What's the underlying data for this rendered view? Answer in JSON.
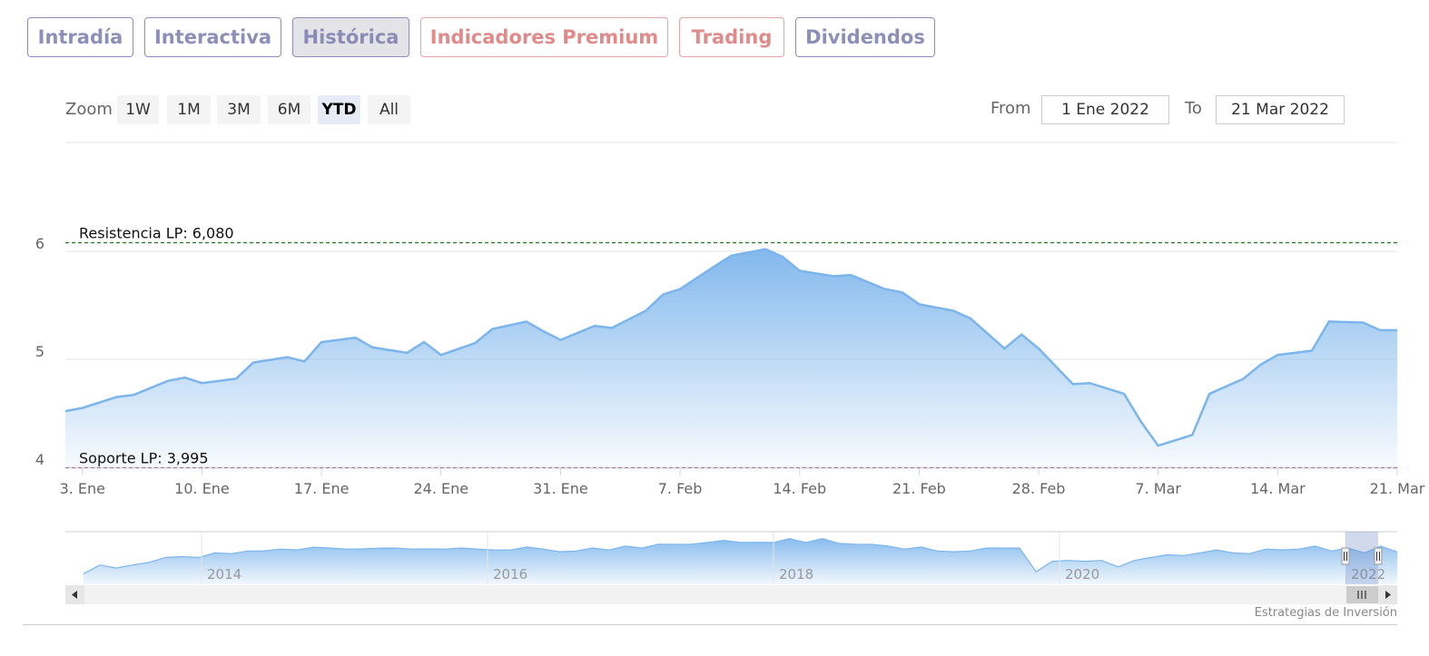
{
  "tabs": [
    {
      "label": "Intradía",
      "style": "normal"
    },
    {
      "label": "Interactiva",
      "style": "normal"
    },
    {
      "label": "Histórica",
      "style": "active"
    },
    {
      "label": "Indicadores Premium",
      "style": "pink"
    },
    {
      "label": "Trading",
      "style": "pink"
    },
    {
      "label": "Dividendos",
      "style": "normal"
    }
  ],
  "range_selector": {
    "zoom_label": "Zoom",
    "buttons": [
      "1W",
      "1M",
      "3M",
      "6M",
      "YTD",
      "All"
    ],
    "selected": "YTD",
    "from_label": "From",
    "from_value": "1 Ene 2022",
    "to_label": "To",
    "to_value": "21 Mar 2022"
  },
  "credits": "Estrategias de Inversión",
  "colors": {
    "series": "#7cb5ec",
    "resistance": "#1a7a1a",
    "support": "#8b1a1a",
    "tab_text": "#8e8fb8",
    "tab_pink": "#e08a8a"
  },
  "chart_data": {
    "type": "area",
    "x": [
      0,
      1,
      3,
      4,
      6,
      7,
      8,
      10,
      11,
      13,
      14,
      15,
      17,
      18,
      20,
      21,
      22,
      24,
      25,
      27,
      28,
      29,
      31,
      32,
      34,
      35,
      36,
      38,
      39,
      41,
      42,
      43,
      45,
      46,
      48,
      49,
      50,
      52,
      53,
      55,
      56,
      57,
      59,
      60,
      62,
      63,
      64,
      66,
      67,
      69,
      70,
      71,
      73,
      74,
      76,
      77,
      78
    ],
    "y": [
      4.52,
      4.55,
      4.65,
      4.67,
      4.8,
      4.83,
      4.78,
      4.82,
      4.97,
      5.02,
      4.98,
      5.16,
      5.2,
      5.11,
      5.06,
      5.16,
      5.04,
      5.15,
      5.28,
      5.35,
      5.26,
      5.18,
      5.31,
      5.29,
      5.45,
      5.6,
      5.65,
      5.86,
      5.96,
      6.02,
      5.95,
      5.82,
      5.77,
      5.78,
      5.65,
      5.62,
      5.51,
      5.45,
      5.38,
      5.1,
      5.23,
      5.1,
      4.77,
      4.78,
      4.68,
      4.42,
      4.2,
      4.3,
      4.68,
      4.82,
      4.95,
      5.04,
      5.08,
      5.35,
      5.34,
      5.27,
      5.27
    ],
    "x_ticks": [
      "3. Ene",
      "10. Ene",
      "17. Ene",
      "24. Ene",
      "31. Ene",
      "7. Feb",
      "14. Feb",
      "21. Feb",
      "28. Feb",
      "7. Mar",
      "14. Mar",
      "21. Mar"
    ],
    "y_ticks": [
      "4",
      "5",
      "6"
    ],
    "ylim": [
      4,
      6.2
    ],
    "plot_lines": [
      {
        "label": "Resistencia LP: 6,080",
        "value": 6.08,
        "style": "dashed",
        "color": "#1a7a1a"
      },
      {
        "label": "Soporte LP: 3,995",
        "value": 3.995,
        "style": "dashed",
        "color": "#8b1a1a"
      }
    ],
    "navigator": {
      "x_labels": [
        "2014",
        "2016",
        "2018",
        "2020",
        "2022"
      ],
      "values": [
        4.2,
        4.6,
        4.5,
        4.6,
        4.8,
        5.0,
        5.1,
        5.0,
        5.3,
        5.2,
        5.4,
        5.35,
        5.5,
        5.4,
        5.6,
        5.5,
        5.5,
        5.45,
        5.55,
        5.5,
        5.5,
        5.45,
        5.5,
        5.5,
        5.5,
        5.4,
        5.45,
        5.55,
        5.5,
        5.3,
        5.4,
        5.5,
        5.45,
        5.6,
        5.55,
        5.7,
        5.75,
        5.7,
        5.85,
        5.9,
        5.85,
        5.8,
        5.85,
        6.0,
        5.85,
        6.0,
        5.8,
        5.7,
        5.75,
        5.6,
        5.5,
        5.55,
        5.4,
        5.3,
        5.4,
        5.5,
        5.55,
        5.5,
        4.3,
        4.8,
        4.9,
        4.8,
        4.9,
        4.5,
        4.9,
        5.0,
        5.2,
        5.1,
        5.3,
        5.4,
        5.3,
        5.2,
        5.5,
        5.4,
        5.5,
        5.6,
        5.4,
        5.5,
        5.3,
        5.6,
        5.35
      ]
    }
  }
}
